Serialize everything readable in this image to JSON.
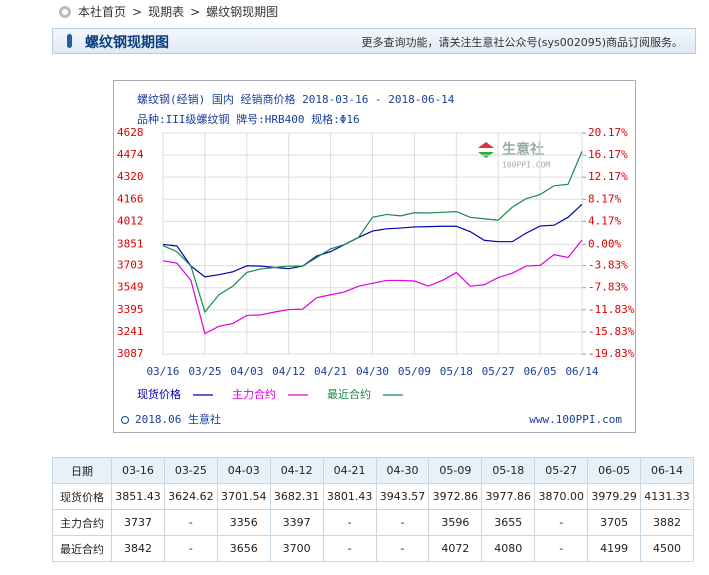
{
  "breadcrumb": [
    "本社首页",
    "现期表",
    "螺纹钢现期图"
  ],
  "breadcrumb_separator": ">",
  "header": {
    "title": "螺纹钢现期图",
    "notice": "更多查询功能，请关注生意社公众号(sys002095)商品订阅服务。"
  },
  "chart_data": {
    "type": "line",
    "title": "螺纹钢(经销) 国内 经销商价格 2018-03-16 - 2018-06-14",
    "subtitle": "品种:III级螺纹钢 牌号:HRB400 规格:Φ16",
    "categories": [
      "03/16",
      null,
      null,
      "03/25",
      null,
      null,
      "04/03",
      null,
      null,
      "04/12",
      null,
      null,
      "04/21",
      null,
      null,
      "04/30",
      null,
      null,
      "05/09",
      null,
      null,
      "05/18",
      null,
      null,
      "05/27",
      null,
      null,
      "06/05",
      null,
      null,
      "06/14"
    ],
    "series": [
      {
        "name": "现货价格",
        "color": "#0000b0",
        "values": [
          3851,
          3840,
          3700,
          3625,
          3640,
          3660,
          3702,
          3700,
          3690,
          3682,
          3700,
          3770,
          3801,
          3850,
          3900,
          3944,
          3960,
          3965,
          3973,
          3975,
          3978,
          3978,
          3940,
          3880,
          3870,
          3870,
          3930,
          3979,
          3985,
          4040,
          4131
        ]
      },
      {
        "name": "主力合约",
        "color": "#e000e0",
        "values": [
          3737,
          3720,
          3600,
          3230,
          3280,
          3300,
          3356,
          3360,
          3380,
          3397,
          3400,
          3480,
          3500,
          3520,
          3560,
          3580,
          3600,
          3600,
          3596,
          3560,
          3600,
          3655,
          3560,
          3570,
          3620,
          3650,
          3700,
          3705,
          3780,
          3760,
          3882
        ]
      },
      {
        "name": "最近合约",
        "color": "#1a8a4a",
        "values": [
          3842,
          3800,
          3700,
          3380,
          3500,
          3560,
          3656,
          3680,
          3690,
          3700,
          3700,
          3760,
          3820,
          3850,
          3900,
          4040,
          4060,
          4050,
          4072,
          4070,
          4075,
          4080,
          4040,
          4030,
          4020,
          4110,
          4170,
          4199,
          4260,
          4270,
          4500
        ]
      }
    ],
    "ylim": [
      3087,
      4628
    ],
    "yticks": [
      4628,
      4474,
      4320,
      4166,
      4012,
      3851,
      3703,
      3549,
      3395,
      3241,
      3087
    ],
    "y2lim": [
      -19.83,
      20.17
    ],
    "y2ticks": [
      {
        "value": 20.17,
        "label": "20.17%"
      },
      {
        "value": 16.17,
        "label": "16.17%"
      },
      {
        "value": 12.17,
        "label": "12.17%"
      },
      {
        "value": 8.17,
        "label": "8.17%"
      },
      {
        "value": 4.17,
        "label": "4.17%"
      },
      {
        "value": 0,
        "label": "0.00%"
      },
      {
        "value": -3.83,
        "label": "-3.83%"
      },
      {
        "value": -7.83,
        "label": "-7.83%"
      },
      {
        "value": -11.83,
        "label": "-11.83%"
      },
      {
        "value": -15.83,
        "label": "-15.83%"
      },
      {
        "value": -19.83,
        "label": "-19.83%"
      }
    ],
    "grid": true,
    "watermark": "生意社",
    "watermark_sub": "100PPI.COM",
    "footer_left": "2018.06 生意社",
    "footer_right": "www.100PPI.com"
  },
  "table": {
    "header": [
      "日期",
      "03-16",
      "03-25",
      "04-03",
      "04-12",
      "04-21",
      "04-30",
      "05-09",
      "05-18",
      "05-27",
      "06-05",
      "06-14"
    ],
    "rows": [
      [
        "现货价格",
        "3851.43",
        "3624.62",
        "3701.54",
        "3682.31",
        "3801.43",
        "3943.57",
        "3972.86",
        "3977.86",
        "3870.00",
        "3979.29",
        "4131.33"
      ],
      [
        "主力合约",
        "3737",
        "-",
        "3356",
        "3397",
        "-",
        "-",
        "3596",
        "3655",
        "-",
        "3705",
        "3882"
      ],
      [
        "最近合约",
        "3842",
        "-",
        "3656",
        "3700",
        "-",
        "-",
        "4072",
        "4080",
        "-",
        "4199",
        "4500"
      ]
    ]
  }
}
